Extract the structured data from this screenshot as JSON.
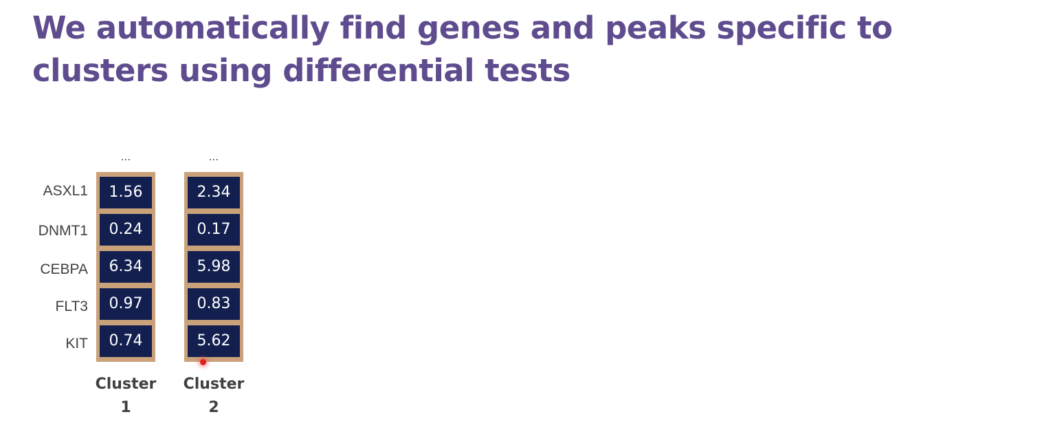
{
  "slide": {
    "title": "We automatically find genes and peaks specific to clusters using differential tests"
  },
  "table": {
    "ellipsis": "...",
    "rows": [
      "ASXL1",
      "DNMT1",
      "CEBPA",
      "FLT3",
      "KIT"
    ],
    "columns": [
      {
        "label_line1": "Cluster",
        "label_line2": "1",
        "values": [
          "1.56",
          "0.24",
          "6.34",
          "0.97",
          "0.74"
        ]
      },
      {
        "label_line1": "Cluster",
        "label_line2": "2",
        "values": [
          "2.34",
          "0.17",
          "5.98",
          "0.83",
          "5.62"
        ]
      }
    ],
    "colors": {
      "cell_fill": "#13204f",
      "cell_border": "#c9a17a",
      "title": "#5e4c8e"
    }
  }
}
